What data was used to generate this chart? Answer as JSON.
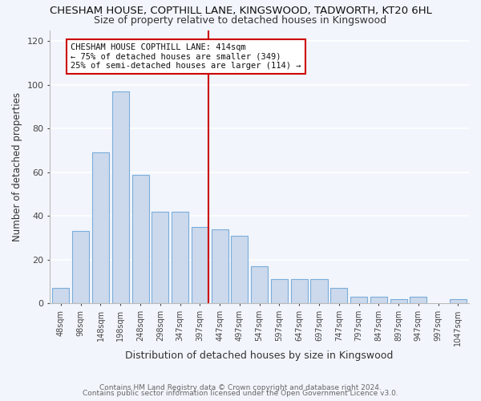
{
  "title": "CHESHAM HOUSE, COPTHILL LANE, KINGSWOOD, TADWORTH, KT20 6HL",
  "subtitle": "Size of property relative to detached houses in Kingswood",
  "xlabel": "Distribution of detached houses by size in Kingswood",
  "ylabel": "Number of detached properties",
  "bar_labels": [
    "48sqm",
    "98sqm",
    "148sqm",
    "198sqm",
    "248sqm",
    "298sqm",
    "347sqm",
    "397sqm",
    "447sqm",
    "497sqm",
    "547sqm",
    "597sqm",
    "647sqm",
    "697sqm",
    "747sqm",
    "797sqm",
    "847sqm",
    "897sqm",
    "947sqm",
    "997sqm",
    "1047sqm"
  ],
  "bar_values": [
    7,
    33,
    69,
    97,
    59,
    42,
    42,
    35,
    34,
    31,
    17,
    11,
    11,
    11,
    7,
    3,
    3,
    2,
    3,
    0,
    2
  ],
  "bar_color": "#ccd9ec",
  "bar_edge_color": "#7aadda",
  "ylim": [
    0,
    125
  ],
  "yticks": [
    0,
    20,
    40,
    60,
    80,
    100,
    120
  ],
  "vline_color": "#cc0000",
  "annotation_title": "CHESHAM HOUSE COPTHILL LANE: 414sqm",
  "annotation_line1": "← 75% of detached houses are smaller (349)",
  "annotation_line2": "25% of semi-detached houses are larger (114) →",
  "annotation_box_color": "#ffffff",
  "annotation_box_edge": "#cc0000",
  "footer1": "Contains HM Land Registry data © Crown copyright and database right 2024.",
  "footer2": "Contains public sector information licensed under the Open Government Licence v3.0.",
  "background_color": "#f2f5fc",
  "grid_color": "#ffffff"
}
